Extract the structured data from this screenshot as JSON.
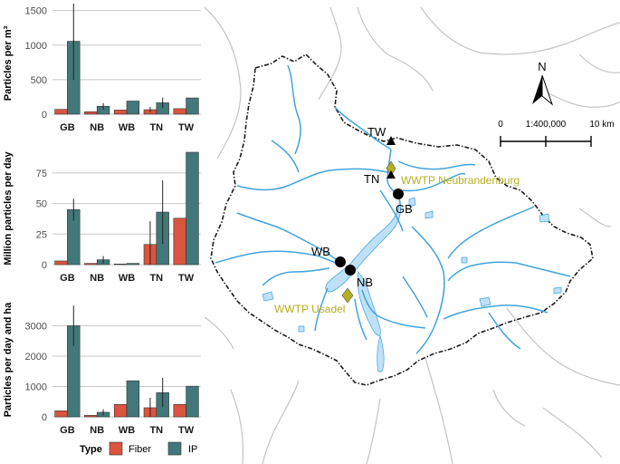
{
  "chart_data": [
    {
      "type": "bar",
      "ylabel": "Particles per m³",
      "categories": [
        "GB",
        "NB",
        "WB",
        "TN",
        "TW"
      ],
      "ylim": [
        0,
        1600
      ],
      "yticks": [
        0,
        500,
        1000,
        1500
      ],
      "series": [
        {
          "name": "Fiber",
          "values": [
            70,
            35,
            60,
            65,
            80
          ],
          "errors": [
            null,
            null,
            null,
            40,
            null
          ]
        },
        {
          "name": "IP",
          "values": [
            1055,
            115,
            190,
            165,
            235
          ],
          "errors": [
            560,
            45,
            null,
            75,
            null
          ]
        }
      ]
    },
    {
      "type": "bar",
      "ylabel": "Million particles per day",
      "categories": [
        "GB",
        "NB",
        "WB",
        "TN",
        "TW"
      ],
      "ylim": [
        0,
        92
      ],
      "yticks": [
        0,
        25,
        50,
        75
      ],
      "series": [
        {
          "name": "Fiber",
          "values": [
            3,
            1,
            0.5,
            16.5,
            38
          ],
          "errors": [
            null,
            null,
            null,
            19,
            null
          ]
        },
        {
          "name": "IP",
          "values": [
            45,
            4,
            1,
            43,
            92
          ],
          "errors": [
            9,
            3,
            null,
            26,
            null
          ]
        }
      ]
    },
    {
      "type": "bar",
      "ylabel": "Particles per day and ha",
      "categories": [
        "GB",
        "NB",
        "WB",
        "TN",
        "TW"
      ],
      "ylim": [
        0,
        3700
      ],
      "yticks": [
        0,
        1000,
        2000,
        3000
      ],
      "series": [
        {
          "name": "Fiber",
          "values": [
            200,
            50,
            410,
            300,
            410
          ],
          "errors": [
            null,
            null,
            null,
            330,
            null
          ]
        },
        {
          "name": "IP",
          "values": [
            3000,
            150,
            1190,
            800,
            1010
          ],
          "errors": [
            660,
            100,
            null,
            480,
            null
          ]
        }
      ]
    }
  ],
  "legend": {
    "title": "Type",
    "items": [
      {
        "label": "Fiber",
        "color": "#d9553f"
      },
      {
        "label": "IP",
        "color": "#42787a"
      }
    ]
  },
  "colors": {
    "fiber": "#d9553f",
    "ip": "#42787a",
    "grid": "#c8c8c8",
    "river": "#3fa4dc",
    "lake": "#bfe0f7",
    "wwtp": "#b5ae1f"
  },
  "map": {
    "north_label": "N",
    "scale_ratio": "1:400,000",
    "scale_start": "0",
    "scale_end": "10 km",
    "stations": {
      "TW": "TW",
      "TN": "TN",
      "GB": "GB",
      "WB": "WB",
      "NB": "NB"
    },
    "wwtp_neubrandenburg": "WWTP Neubrandenburg",
    "wwtp_usadel": "WWTP Usadel"
  }
}
